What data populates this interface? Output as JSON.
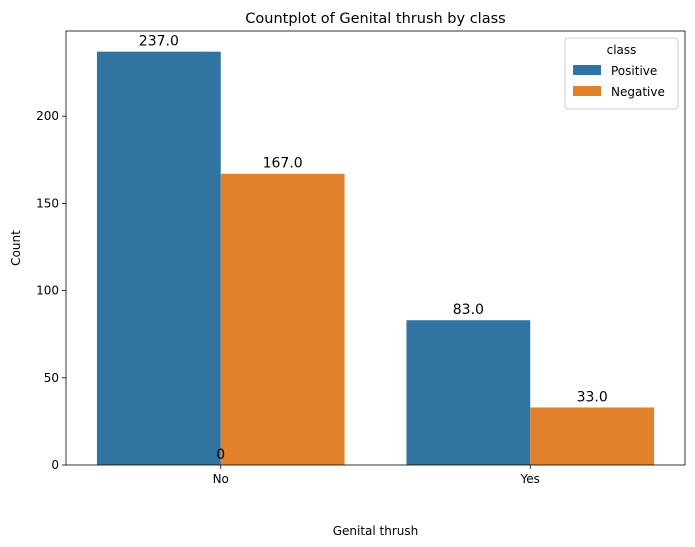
{
  "chart_data": {
    "type": "bar",
    "title": "Countplot of Genital thrush by class",
    "xlabel": "Genital thrush",
    "ylabel": "Count",
    "categories": [
      "No",
      "Yes"
    ],
    "series": [
      {
        "name": "Positive",
        "values": [
          237,
          83
        ],
        "color": "#3274a1",
        "labels": [
          "237.0",
          "83.0"
        ]
      },
      {
        "name": "Negative",
        "values": [
          167,
          33
        ],
        "color": "#e1812c",
        "labels": [
          "167.0",
          "33.0"
        ]
      }
    ],
    "extra_label": "0",
    "ylim": [
      0,
      248.85
    ],
    "yticks": [
      0,
      50,
      100,
      150,
      200
    ],
    "legend": {
      "title": "class",
      "position": "top-right"
    },
    "grid": false
  }
}
